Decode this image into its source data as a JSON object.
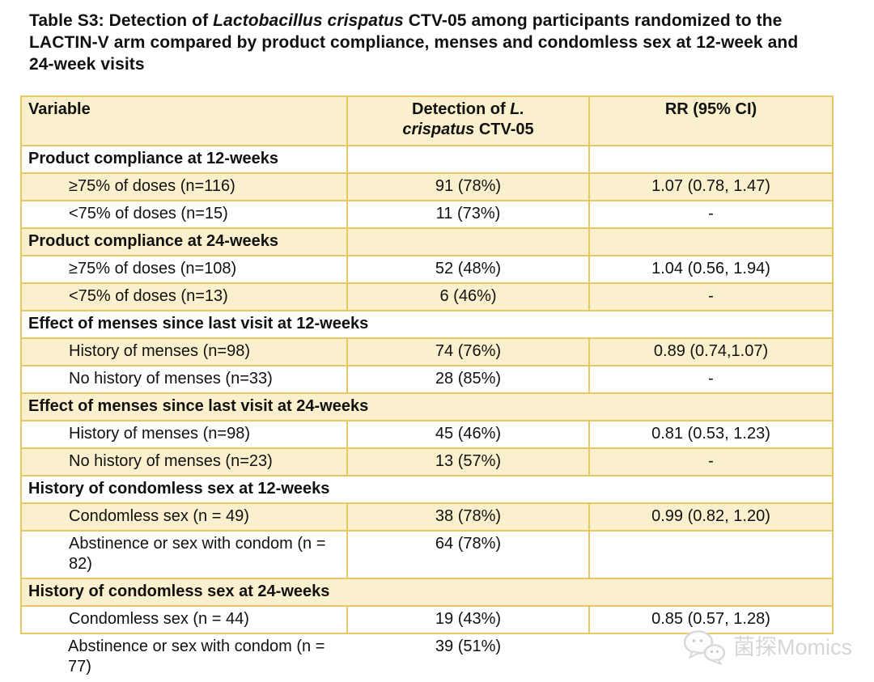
{
  "title": {
    "prefix": "Table S3: Detection of ",
    "italic": "Lactobacillus crispatus",
    "suffix": " CTV-05 among participants randomized to the LACTIN-V arm compared by product compliance, menses and condomless sex at 12-week and 24-week visits"
  },
  "table": {
    "header": {
      "variable": "Variable",
      "det_pre": "Detection of ",
      "det_it1": "L.",
      "det_it2": "crispatus",
      "det_post": " CTV-05",
      "rr": "RR (95% CI)"
    },
    "rows": [
      {
        "type": "section3",
        "shaded": false,
        "cells": [
          "Product compliance at 12-weeks",
          "",
          ""
        ]
      },
      {
        "type": "data",
        "shaded": true,
        "cells": [
          "≥75% of doses (n=116)",
          "91 (78%)",
          "1.07 (0.78, 1.47)"
        ]
      },
      {
        "type": "data",
        "shaded": false,
        "cells": [
          "<75% of doses (n=15)",
          "11 (73%)",
          "-"
        ]
      },
      {
        "type": "section3",
        "shaded": true,
        "cells": [
          "Product compliance at 24-weeks",
          "",
          ""
        ]
      },
      {
        "type": "data",
        "shaded": false,
        "cells": [
          "≥75% of doses (n=108)",
          "52 (48%)",
          "1.04 (0.56, 1.94)"
        ]
      },
      {
        "type": "data",
        "shaded": true,
        "cells": [
          "<75% of doses (n=13)",
          "6 (46%)",
          "-"
        ]
      },
      {
        "type": "section",
        "shaded": false,
        "cells": [
          "Effect of menses since last visit at 12-weeks"
        ]
      },
      {
        "type": "data",
        "shaded": true,
        "cells": [
          "History of menses (n=98)",
          "74 (76%)",
          "0.89 (0.74,1.07)"
        ]
      },
      {
        "type": "data",
        "shaded": false,
        "cells": [
          "No history of menses (n=33)",
          "28 (85%)",
          "-"
        ]
      },
      {
        "type": "section",
        "shaded": true,
        "cells": [
          "Effect of menses since last visit at 24-weeks"
        ]
      },
      {
        "type": "data",
        "shaded": false,
        "cells": [
          "History of menses (n=98)",
          "45 (46%)",
          "0.81 (0.53, 1.23)"
        ]
      },
      {
        "type": "data",
        "shaded": true,
        "cells": [
          "No history of menses (n=23)",
          "13 (57%)",
          "-"
        ]
      },
      {
        "type": "section",
        "shaded": false,
        "cells": [
          "History of condomless sex at 12-weeks"
        ]
      },
      {
        "type": "data",
        "shaded": true,
        "cells": [
          "Condomless sex (n = 49)",
          "38 (78%)",
          "0.99 (0.82, 1.20)"
        ]
      },
      {
        "type": "data",
        "shaded": false,
        "cells": [
          "Abstinence or sex with condom (n = 82)",
          "64 (78%)",
          ""
        ]
      },
      {
        "type": "section",
        "shaded": true,
        "cells": [
          "History of condomless sex at 24-weeks"
        ]
      },
      {
        "type": "data",
        "shaded": false,
        "cells": [
          "Condomless sex (n = 44)",
          "19 (43%)",
          "0.85 (0.57, 1.28)"
        ]
      },
      {
        "type": "data",
        "shaded": false,
        "cut": true,
        "cells": [
          "Abstinence or sex with condom (n = 77)",
          "39 (51%)",
          ""
        ]
      }
    ]
  },
  "watermark": {
    "text": "菌探Momics",
    "icon": "wechat-bubbles-icon"
  },
  "colors": {
    "row_shade": "#FBF0CD",
    "table_border": "#E9C863",
    "watermark_gray": "#D6D6D6",
    "text": "#111111"
  }
}
